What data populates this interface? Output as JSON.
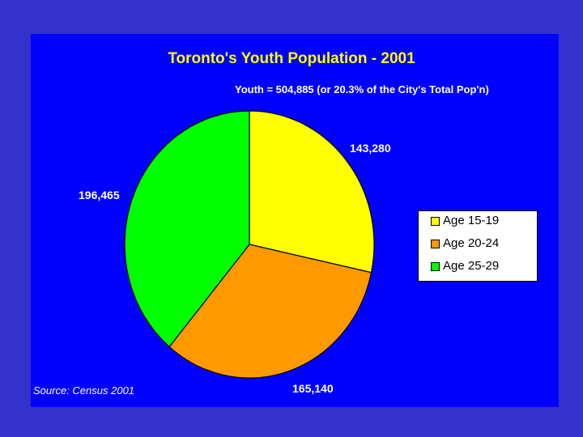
{
  "chart_data": {
    "type": "pie",
    "title": "Toronto's Youth Population - 2001",
    "subtitle": "Youth = 504,885 (or 20.3% of the City's Total Pop'n)",
    "source": "Source: Census 2001",
    "legend_position": "right",
    "slices": [
      {
        "label": "Age 15-19",
        "value": 143280,
        "value_label": "143,280",
        "color": "#ffff00"
      },
      {
        "label": "Age 20-24",
        "value": 165140,
        "value_label": "165,140",
        "color": "#ff9900"
      },
      {
        "label": "Age 25-29",
        "value": 196465,
        "value_label": "196,465",
        "color": "#00ff00"
      }
    ]
  },
  "colors": {
    "background": "#3333cc",
    "panel": "#0000ff",
    "title": "#ffff00",
    "text": "#ffffff"
  }
}
